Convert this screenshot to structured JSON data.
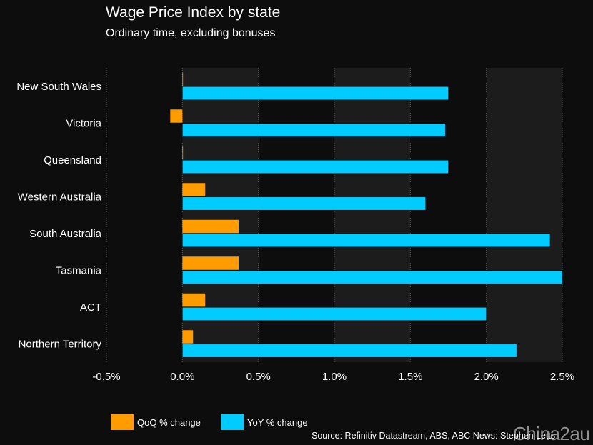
{
  "header": {
    "title": "Wage Price Index by state",
    "subtitle": "Ordinary time, excluding bonuses"
  },
  "footer": {
    "source": "Source: Refinitiv Datastream, ABS, ABC News: Stephen Letts",
    "watermark": "China2au"
  },
  "colors": {
    "background": "#0d0d0d",
    "band": "#1c1c1c",
    "qoq": "#ff9c00",
    "yoy": "#00ccff",
    "grid": "#5a5a5a"
  },
  "chart_data": {
    "type": "bar",
    "orientation": "horizontal",
    "title": "Wage Price Index by state",
    "subtitle": "Ordinary time, excluding bonuses",
    "categories": [
      "New South Wales",
      "Victoria",
      "Queensland",
      "Western Australia",
      "South Australia",
      "Tasmania",
      "ACT",
      "Northern Territory"
    ],
    "series": [
      {
        "name": "QoQ % change",
        "color": "#ff9c00",
        "values": [
          0.0,
          -0.08,
          0.0,
          0.15,
          0.37,
          0.37,
          0.15,
          0.07
        ]
      },
      {
        "name": "YoY % change",
        "color": "#00ccff",
        "values": [
          1.75,
          1.73,
          1.75,
          1.6,
          2.42,
          2.5,
          2.0,
          2.2
        ]
      }
    ],
    "xlim": [
      -0.5,
      2.5
    ],
    "xticks": [
      "-0.5%",
      "0.0%",
      "0.5%",
      "1.0%",
      "1.5%",
      "2.0%",
      "2.5%"
    ],
    "xtick_values": [
      -0.5,
      0.0,
      0.5,
      1.0,
      1.5,
      2.0,
      2.5
    ],
    "grid": true,
    "legend": "bottom-left"
  }
}
